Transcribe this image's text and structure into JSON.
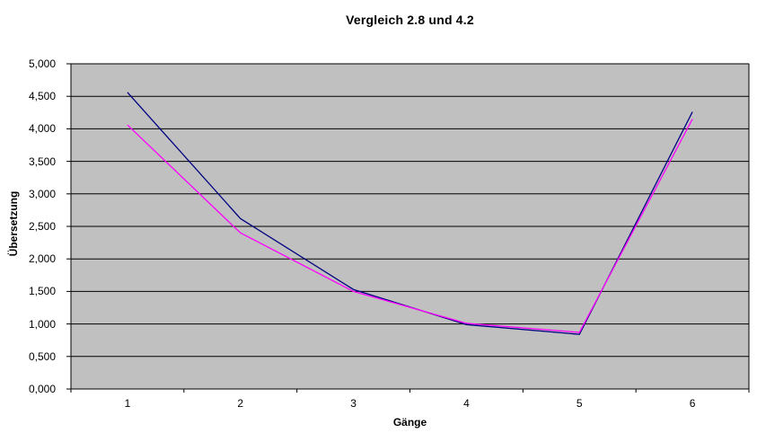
{
  "title": "Vergleich 2.8 und 4.2",
  "chart_data": {
    "type": "line",
    "title": "Vergleich 2.8 und 4.2",
    "xlabel": "Gänge",
    "ylabel": "Übersetzung",
    "categories": [
      "1",
      "2",
      "3",
      "4",
      "5",
      "6"
    ],
    "series": [
      {
        "name": "series-blue",
        "color": "#000080",
        "values": [
          4.56,
          2.62,
          1.53,
          0.99,
          0.84,
          4.26
        ]
      },
      {
        "name": "series-magenta",
        "color": "#FF00FF",
        "values": [
          4.06,
          2.4,
          1.5,
          1.01,
          0.87,
          4.15
        ]
      }
    ],
    "ylim": [
      0,
      5
    ],
    "ytick_step": 0.5,
    "ytick_labels": [
      "0,000",
      "0,500",
      "1,000",
      "1,500",
      "2,000",
      "2,500",
      "3,000",
      "3,500",
      "4,000",
      "4,500",
      "5,000"
    ],
    "grid": true,
    "legend_position": "none"
  },
  "colors": {
    "page_bg": "#FFFFFF",
    "plot_bg": "#C0C0C0",
    "gridline": "#000000",
    "axis": "#000000",
    "text": "#000000"
  }
}
